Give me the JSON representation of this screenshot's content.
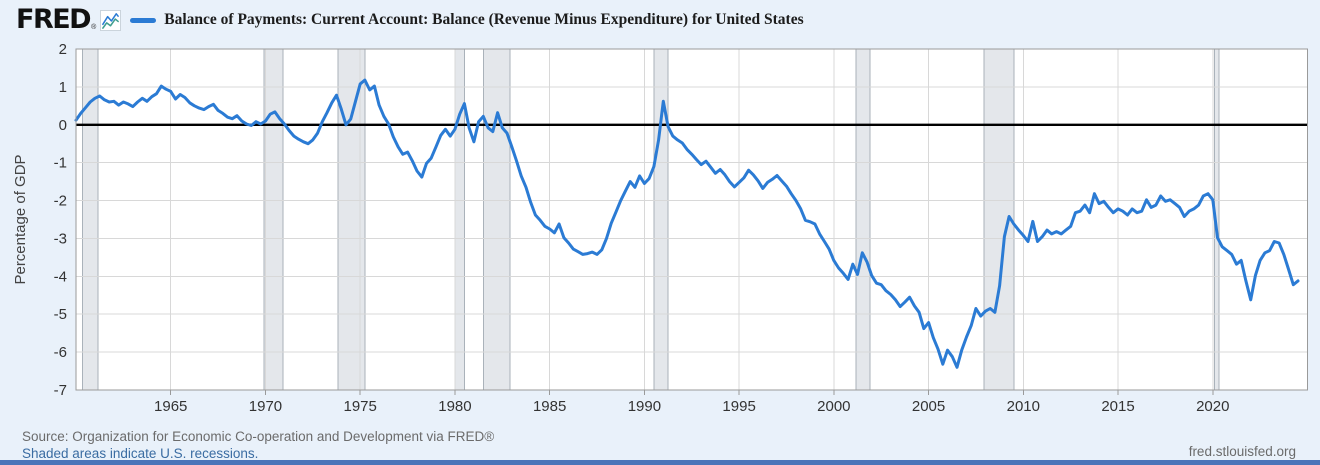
{
  "header": {
    "logo": "FRED",
    "trademark": "®",
    "icons": {
      "logo_sparkline": "sparkline-icon"
    },
    "series_label": "Balance of Payments: Current Account: Balance (Revenue Minus Expenditure) for United States"
  },
  "footer": {
    "source": "Source: Organization for Economic Co-operation and Development via FRED®",
    "recession_note": "Shaded areas indicate U.S. recessions.",
    "site": "fred.stlouisfed.org"
  },
  "colors": {
    "background": "#e9f1fa",
    "plot_background": "#ffffff",
    "series": "#2b7bd4",
    "grid": "#d8d8d8",
    "recession_fill": "#e4e7eb",
    "recession_edge": "#aab2ba",
    "zero_line": "#000000",
    "plot_border": "#9a9a9a",
    "tick_text": "#333333",
    "axis_title_text": "#444444",
    "footer_text": "#6b6b6b",
    "link": "#3a6ca2",
    "bottom_bar": "#4a74b9"
  },
  "chart_data": {
    "type": "line",
    "title": "Balance of Payments: Current Account: Balance (Revenue Minus Expenditure) for United States",
    "xlabel": "",
    "ylabel": "Percentage of GDP",
    "x_range": [
      1960,
      2025
    ],
    "y_range": [
      -7,
      2
    ],
    "x_ticks": [
      1965,
      1970,
      1975,
      1980,
      1985,
      1990,
      1995,
      2000,
      2005,
      2010,
      2015,
      2020
    ],
    "y_ticks": [
      2,
      1,
      0,
      -1,
      -2,
      -3,
      -4,
      -5,
      -6,
      -7
    ],
    "grid": true,
    "zero_line": true,
    "legend_position": "top",
    "recession_bands": [
      [
        1960.33,
        1961.17
      ],
      [
        1969.92,
        1970.92
      ],
      [
        1973.83,
        1975.25
      ],
      [
        1980.0,
        1980.5
      ],
      [
        1981.5,
        1982.92
      ],
      [
        1990.5,
        1991.25
      ],
      [
        2001.17,
        2001.92
      ],
      [
        2007.92,
        2009.5
      ],
      [
        2020.08,
        2020.33
      ]
    ],
    "series": [
      {
        "name": "Balance of Payments: Current Account: Balance (Revenue Minus Expenditure) for United States",
        "color": "#2b7bd4",
        "points": [
          [
            1960.0,
            0.12
          ],
          [
            1960.25,
            0.3
          ],
          [
            1960.5,
            0.45
          ],
          [
            1960.75,
            0.6
          ],
          [
            1961.0,
            0.7
          ],
          [
            1961.25,
            0.76
          ],
          [
            1961.5,
            0.66
          ],
          [
            1961.75,
            0.6
          ],
          [
            1962.0,
            0.62
          ],
          [
            1962.25,
            0.52
          ],
          [
            1962.5,
            0.6
          ],
          [
            1962.75,
            0.55
          ],
          [
            1963.0,
            0.48
          ],
          [
            1963.25,
            0.6
          ],
          [
            1963.5,
            0.7
          ],
          [
            1963.75,
            0.62
          ],
          [
            1964.0,
            0.74
          ],
          [
            1964.25,
            0.82
          ],
          [
            1964.5,
            1.02
          ],
          [
            1964.75,
            0.94
          ],
          [
            1965.0,
            0.88
          ],
          [
            1965.25,
            0.68
          ],
          [
            1965.5,
            0.8
          ],
          [
            1965.75,
            0.72
          ],
          [
            1966.0,
            0.58
          ],
          [
            1966.25,
            0.5
          ],
          [
            1966.5,
            0.44
          ],
          [
            1966.75,
            0.4
          ],
          [
            1967.0,
            0.48
          ],
          [
            1967.25,
            0.54
          ],
          [
            1967.5,
            0.38
          ],
          [
            1967.75,
            0.3
          ],
          [
            1968.0,
            0.2
          ],
          [
            1968.25,
            0.16
          ],
          [
            1968.5,
            0.24
          ],
          [
            1968.75,
            0.1
          ],
          [
            1969.0,
            0.02
          ],
          [
            1969.25,
            -0.02
          ],
          [
            1969.5,
            0.08
          ],
          [
            1969.75,
            0.02
          ],
          [
            1970.0,
            0.1
          ],
          [
            1970.25,
            0.28
          ],
          [
            1970.5,
            0.34
          ],
          [
            1970.75,
            0.16
          ],
          [
            1971.0,
            0.02
          ],
          [
            1971.25,
            -0.15
          ],
          [
            1971.5,
            -0.3
          ],
          [
            1971.75,
            -0.38
          ],
          [
            1972.0,
            -0.45
          ],
          [
            1972.25,
            -0.5
          ],
          [
            1972.5,
            -0.4
          ],
          [
            1972.75,
            -0.22
          ],
          [
            1973.0,
            0.08
          ],
          [
            1973.25,
            0.32
          ],
          [
            1973.5,
            0.58
          ],
          [
            1973.75,
            0.78
          ],
          [
            1974.0,
            0.42
          ],
          [
            1974.25,
            0.0
          ],
          [
            1974.5,
            0.15
          ],
          [
            1974.75,
            0.62
          ],
          [
            1975.0,
            1.08
          ],
          [
            1975.25,
            1.18
          ],
          [
            1975.5,
            0.92
          ],
          [
            1975.75,
            1.02
          ],
          [
            1976.0,
            0.52
          ],
          [
            1976.25,
            0.22
          ],
          [
            1976.5,
            0.02
          ],
          [
            1976.75,
            -0.32
          ],
          [
            1977.0,
            -0.58
          ],
          [
            1977.25,
            -0.78
          ],
          [
            1977.5,
            -0.72
          ],
          [
            1977.75,
            -0.95
          ],
          [
            1978.0,
            -1.22
          ],
          [
            1978.25,
            -1.38
          ],
          [
            1978.5,
            -1.02
          ],
          [
            1978.75,
            -0.88
          ],
          [
            1979.0,
            -0.58
          ],
          [
            1979.25,
            -0.28
          ],
          [
            1979.5,
            -0.12
          ],
          [
            1979.75,
            -0.3
          ],
          [
            1980.0,
            -0.12
          ],
          [
            1980.25,
            0.28
          ],
          [
            1980.5,
            0.56
          ],
          [
            1980.75,
            -0.08
          ],
          [
            1981.0,
            -0.45
          ],
          [
            1981.25,
            0.08
          ],
          [
            1981.5,
            0.22
          ],
          [
            1981.75,
            -0.08
          ],
          [
            1982.0,
            -0.18
          ],
          [
            1982.25,
            0.32
          ],
          [
            1982.5,
            -0.08
          ],
          [
            1982.75,
            -0.22
          ],
          [
            1983.0,
            -0.58
          ],
          [
            1983.25,
            -0.95
          ],
          [
            1983.5,
            -1.35
          ],
          [
            1983.75,
            -1.65
          ],
          [
            1984.0,
            -2.05
          ],
          [
            1984.25,
            -2.38
          ],
          [
            1984.5,
            -2.52
          ],
          [
            1984.75,
            -2.68
          ],
          [
            1985.0,
            -2.75
          ],
          [
            1985.25,
            -2.85
          ],
          [
            1985.5,
            -2.62
          ],
          [
            1985.75,
            -2.98
          ],
          [
            1986.0,
            -3.12
          ],
          [
            1986.25,
            -3.28
          ],
          [
            1986.5,
            -3.35
          ],
          [
            1986.75,
            -3.42
          ],
          [
            1987.0,
            -3.4
          ],
          [
            1987.25,
            -3.36
          ],
          [
            1987.5,
            -3.42
          ],
          [
            1987.75,
            -3.3
          ],
          [
            1988.0,
            -3.0
          ],
          [
            1988.25,
            -2.6
          ],
          [
            1988.5,
            -2.3
          ],
          [
            1988.75,
            -2.0
          ],
          [
            1989.0,
            -1.75
          ],
          [
            1989.25,
            -1.5
          ],
          [
            1989.5,
            -1.65
          ],
          [
            1989.75,
            -1.35
          ],
          [
            1990.0,
            -1.55
          ],
          [
            1990.25,
            -1.42
          ],
          [
            1990.5,
            -1.1
          ],
          [
            1990.75,
            -0.4
          ],
          [
            1991.0,
            0.62
          ],
          [
            1991.25,
            -0.05
          ],
          [
            1991.5,
            -0.3
          ],
          [
            1991.75,
            -0.4
          ],
          [
            1992.0,
            -0.48
          ],
          [
            1992.25,
            -0.65
          ],
          [
            1992.5,
            -0.78
          ],
          [
            1992.75,
            -0.92
          ],
          [
            1993.0,
            -1.05
          ],
          [
            1993.25,
            -0.96
          ],
          [
            1993.5,
            -1.12
          ],
          [
            1993.75,
            -1.28
          ],
          [
            1994.0,
            -1.18
          ],
          [
            1994.25,
            -1.32
          ],
          [
            1994.5,
            -1.5
          ],
          [
            1994.75,
            -1.64
          ],
          [
            1995.0,
            -1.52
          ],
          [
            1995.25,
            -1.4
          ],
          [
            1995.5,
            -1.2
          ],
          [
            1995.75,
            -1.32
          ],
          [
            1996.0,
            -1.48
          ],
          [
            1996.25,
            -1.68
          ],
          [
            1996.5,
            -1.52
          ],
          [
            1996.75,
            -1.44
          ],
          [
            1997.0,
            -1.34
          ],
          [
            1997.25,
            -1.48
          ],
          [
            1997.5,
            -1.62
          ],
          [
            1997.75,
            -1.82
          ],
          [
            1998.0,
            -2.0
          ],
          [
            1998.25,
            -2.22
          ],
          [
            1998.5,
            -2.52
          ],
          [
            1998.75,
            -2.56
          ],
          [
            1999.0,
            -2.62
          ],
          [
            1999.25,
            -2.88
          ],
          [
            1999.5,
            -3.08
          ],
          [
            1999.75,
            -3.28
          ],
          [
            2000.0,
            -3.58
          ],
          [
            2000.25,
            -3.78
          ],
          [
            2000.5,
            -3.92
          ],
          [
            2000.75,
            -4.08
          ],
          [
            2001.0,
            -3.68
          ],
          [
            2001.25,
            -3.95
          ],
          [
            2001.5,
            -3.38
          ],
          [
            2001.75,
            -3.62
          ],
          [
            2002.0,
            -3.98
          ],
          [
            2002.25,
            -4.18
          ],
          [
            2002.5,
            -4.22
          ],
          [
            2002.75,
            -4.38
          ],
          [
            2003.0,
            -4.48
          ],
          [
            2003.25,
            -4.62
          ],
          [
            2003.5,
            -4.8
          ],
          [
            2003.75,
            -4.68
          ],
          [
            2004.0,
            -4.55
          ],
          [
            2004.25,
            -4.78
          ],
          [
            2004.5,
            -4.95
          ],
          [
            2004.75,
            -5.38
          ],
          [
            2005.0,
            -5.22
          ],
          [
            2005.25,
            -5.62
          ],
          [
            2005.5,
            -5.92
          ],
          [
            2005.75,
            -6.32
          ],
          [
            2006.0,
            -5.95
          ],
          [
            2006.25,
            -6.12
          ],
          [
            2006.5,
            -6.4
          ],
          [
            2006.75,
            -5.95
          ],
          [
            2007.0,
            -5.6
          ],
          [
            2007.25,
            -5.3
          ],
          [
            2007.5,
            -4.85
          ],
          [
            2007.75,
            -5.05
          ],
          [
            2008.0,
            -4.92
          ],
          [
            2008.25,
            -4.85
          ],
          [
            2008.5,
            -4.95
          ],
          [
            2008.75,
            -4.25
          ],
          [
            2009.0,
            -2.95
          ],
          [
            2009.25,
            -2.42
          ],
          [
            2009.5,
            -2.62
          ],
          [
            2009.75,
            -2.78
          ],
          [
            2010.0,
            -2.92
          ],
          [
            2010.25,
            -3.08
          ],
          [
            2010.5,
            -2.55
          ],
          [
            2010.75,
            -3.08
          ],
          [
            2011.0,
            -2.95
          ],
          [
            2011.25,
            -2.78
          ],
          [
            2011.5,
            -2.88
          ],
          [
            2011.75,
            -2.82
          ],
          [
            2012.0,
            -2.88
          ],
          [
            2012.25,
            -2.78
          ],
          [
            2012.5,
            -2.68
          ],
          [
            2012.75,
            -2.32
          ],
          [
            2013.0,
            -2.28
          ],
          [
            2013.25,
            -2.12
          ],
          [
            2013.5,
            -2.32
          ],
          [
            2013.75,
            -1.82
          ],
          [
            2014.0,
            -2.08
          ],
          [
            2014.25,
            -2.02
          ],
          [
            2014.5,
            -2.18
          ],
          [
            2014.75,
            -2.32
          ],
          [
            2015.0,
            -2.22
          ],
          [
            2015.25,
            -2.28
          ],
          [
            2015.5,
            -2.38
          ],
          [
            2015.75,
            -2.22
          ],
          [
            2016.0,
            -2.32
          ],
          [
            2016.25,
            -2.28
          ],
          [
            2016.5,
            -1.98
          ],
          [
            2016.75,
            -2.18
          ],
          [
            2017.0,
            -2.12
          ],
          [
            2017.25,
            -1.88
          ],
          [
            2017.5,
            -2.02
          ],
          [
            2017.75,
            -1.98
          ],
          [
            2018.0,
            -2.08
          ],
          [
            2018.25,
            -2.18
          ],
          [
            2018.5,
            -2.42
          ],
          [
            2018.75,
            -2.28
          ],
          [
            2019.0,
            -2.22
          ],
          [
            2019.25,
            -2.12
          ],
          [
            2019.5,
            -1.88
          ],
          [
            2019.75,
            -1.82
          ],
          [
            2020.0,
            -1.98
          ],
          [
            2020.25,
            -2.98
          ],
          [
            2020.5,
            -3.22
          ],
          [
            2020.75,
            -3.32
          ],
          [
            2021.0,
            -3.42
          ],
          [
            2021.25,
            -3.68
          ],
          [
            2021.5,
            -3.58
          ],
          [
            2021.75,
            -4.12
          ],
          [
            2022.0,
            -4.62
          ],
          [
            2022.25,
            -3.98
          ],
          [
            2022.5,
            -3.58
          ],
          [
            2022.75,
            -3.38
          ],
          [
            2023.0,
            -3.32
          ],
          [
            2023.25,
            -3.08
          ],
          [
            2023.5,
            -3.12
          ],
          [
            2023.75,
            -3.42
          ],
          [
            2024.0,
            -3.82
          ],
          [
            2024.25,
            -4.22
          ],
          [
            2024.5,
            -4.12
          ]
        ]
      }
    ]
  }
}
